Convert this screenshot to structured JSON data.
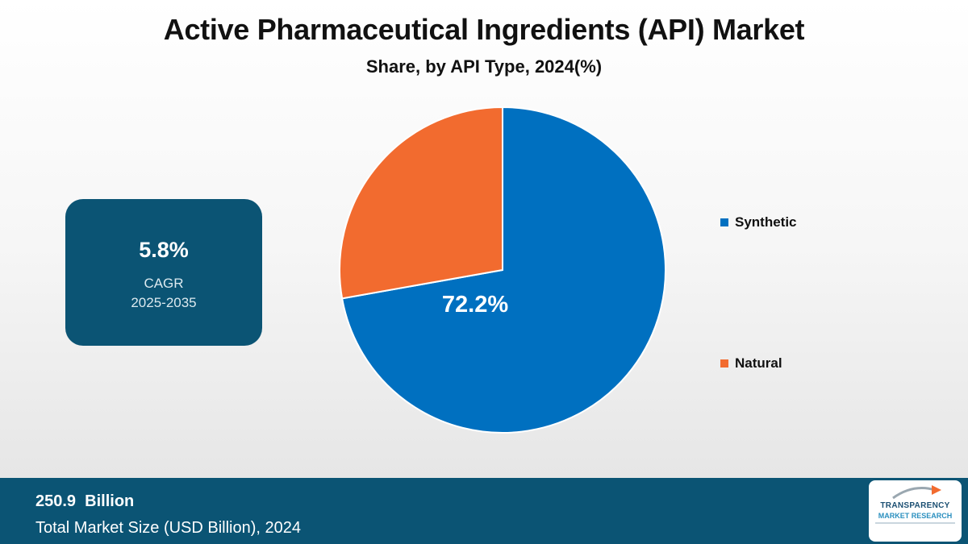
{
  "header": {
    "title": "Active Pharmaceutical Ingredients (API) Market",
    "subtitle": "Share, by API Type, 2024(%)"
  },
  "cagr": {
    "value": "5.8%",
    "label": "CAGR",
    "period": "2025-2035"
  },
  "chart_data": {
    "type": "pie",
    "title": "Active Pharmaceutical Ingredients (API) Market",
    "subtitle": "Share, by API Type, 2024(%)",
    "categories": [
      "Synthetic",
      "Natural"
    ],
    "values": [
      72.2,
      27.8
    ],
    "data_labels": [
      "72.2%",
      ""
    ],
    "colors": [
      "#0070c0",
      "#f26b2f"
    ],
    "legend_position": "right"
  },
  "legend": {
    "items": [
      {
        "label": "Synthetic",
        "color": "#0070c0"
      },
      {
        "label": "Natural",
        "color": "#f26b2f"
      }
    ]
  },
  "footer": {
    "value": "250.9  Billion",
    "label": "Total Market Size (USD Billion), 2024"
  },
  "logo": {
    "line1": "TRANSPARENCY",
    "line2": "MARKET RESEARCH"
  },
  "colors": {
    "accent": "#0b5474",
    "synthetic": "#0070c0",
    "natural": "#f26b2f"
  }
}
